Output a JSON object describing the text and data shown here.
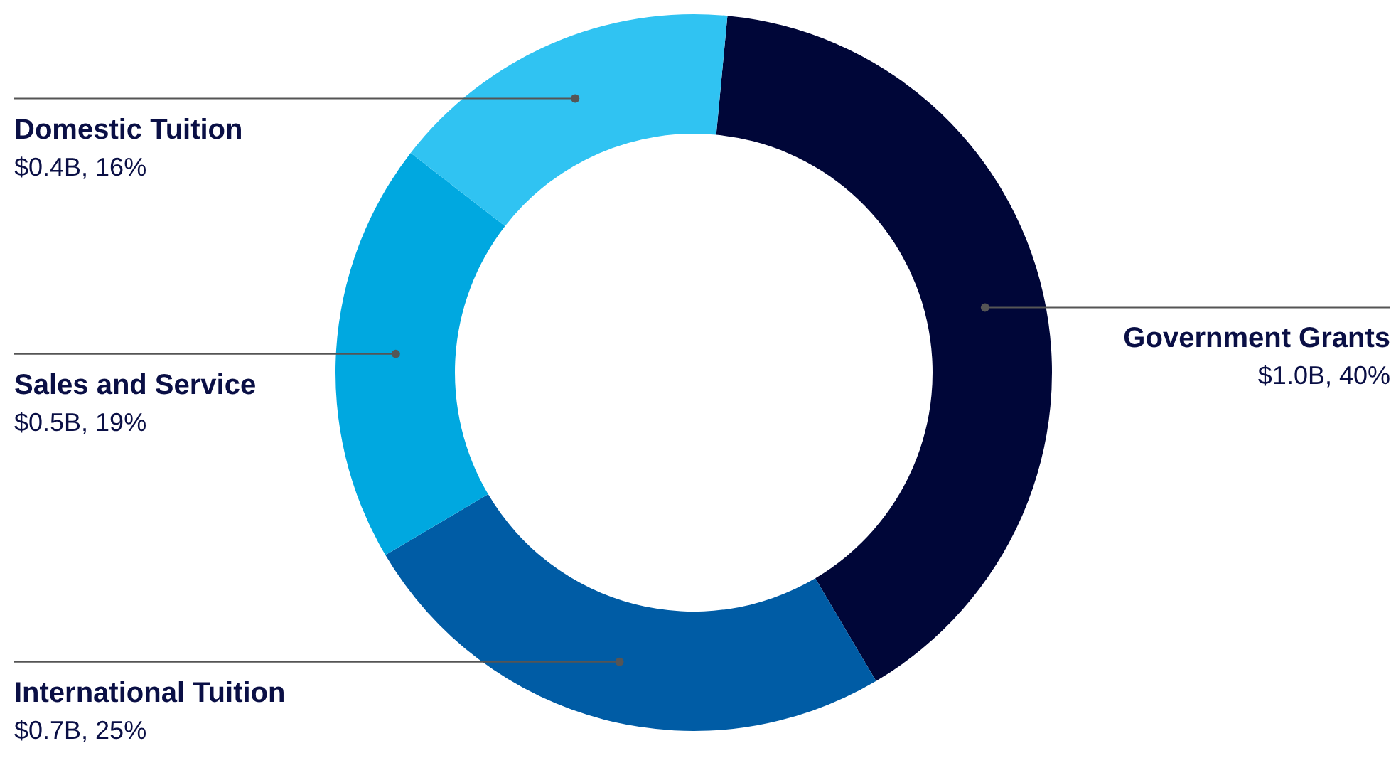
{
  "chart_data": {
    "type": "donut",
    "categories": [
      "Government Grants",
      "International Tuition",
      "Sales and Service",
      "Domestic Tuition"
    ],
    "values": [
      40,
      25,
      19,
      16
    ],
    "value_labels": [
      "$1.0B, 40%",
      "$0.7B, 25%",
      "$0.5B, 19%",
      "$0.4B, 16%"
    ],
    "colors": [
      "#000638",
      "#005ca5",
      "#00a8e0",
      "#30c3f2"
    ]
  }
}
